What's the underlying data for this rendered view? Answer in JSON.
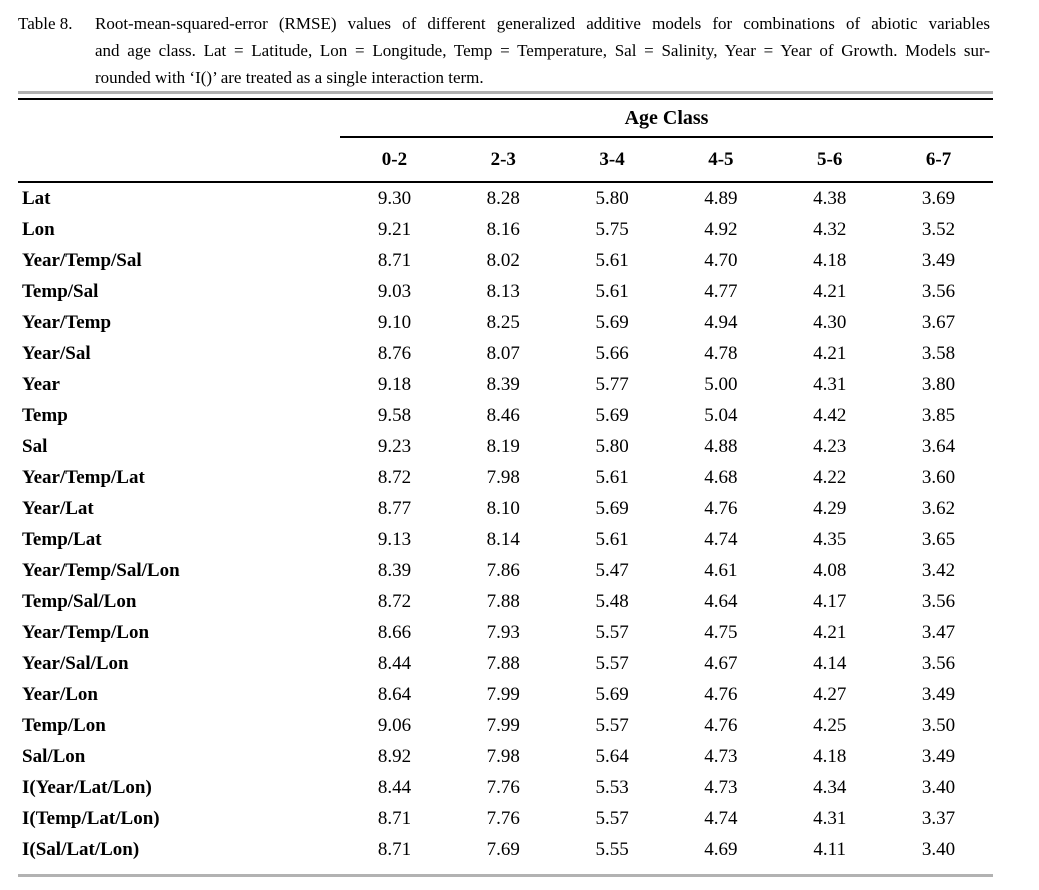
{
  "page": {
    "background": "#ffffff",
    "text_color": "#000000",
    "rule_black": "#000000",
    "rule_gray": "#b2b2b2"
  },
  "caption": {
    "label": "Table 8.",
    "lines": [
      "Root-mean-squared-error (RMSE) values of different generalized additive models for combinations of abiotic variables",
      "and age class. Lat = Latitude, Lon = Longitude, Temp = Temperature, Sal = Salinity, Year = Year of Growth. Models sur-",
      "rounded with ‘I()’ are treated as a single interaction term."
    ]
  },
  "table": {
    "span_header": "Age Class",
    "columns": [
      "0-2",
      "2-3",
      "3-4",
      "4-5",
      "5-6",
      "6-7"
    ],
    "rows": [
      {
        "label": "Lat",
        "values": [
          "9.30",
          "8.28",
          "5.80",
          "4.89",
          "4.38",
          "3.69"
        ]
      },
      {
        "label": "Lon",
        "values": [
          "9.21",
          "8.16",
          "5.75",
          "4.92",
          "4.32",
          "3.52"
        ]
      },
      {
        "label": "Year/Temp/Sal",
        "values": [
          "8.71",
          "8.02",
          "5.61",
          "4.70",
          "4.18",
          "3.49"
        ]
      },
      {
        "label": "Temp/Sal",
        "values": [
          "9.03",
          "8.13",
          "5.61",
          "4.77",
          "4.21",
          "3.56"
        ]
      },
      {
        "label": "Year/Temp",
        "values": [
          "9.10",
          "8.25",
          "5.69",
          "4.94",
          "4.30",
          "3.67"
        ]
      },
      {
        "label": "Year/Sal",
        "values": [
          "8.76",
          "8.07",
          "5.66",
          "4.78",
          "4.21",
          "3.58"
        ]
      },
      {
        "label": "Year",
        "values": [
          "9.18",
          "8.39",
          "5.77",
          "5.00",
          "4.31",
          "3.80"
        ]
      },
      {
        "label": "Temp",
        "values": [
          "9.58",
          "8.46",
          "5.69",
          "5.04",
          "4.42",
          "3.85"
        ]
      },
      {
        "label": "Sal",
        "values": [
          "9.23",
          "8.19",
          "5.80",
          "4.88",
          "4.23",
          "3.64"
        ]
      },
      {
        "label": "Year/Temp/Lat",
        "values": [
          "8.72",
          "7.98",
          "5.61",
          "4.68",
          "4.22",
          "3.60"
        ]
      },
      {
        "label": "Year/Lat",
        "values": [
          "8.77",
          "8.10",
          "5.69",
          "4.76",
          "4.29",
          "3.62"
        ]
      },
      {
        "label": "Temp/Lat",
        "values": [
          "9.13",
          "8.14",
          "5.61",
          "4.74",
          "4.35",
          "3.65"
        ]
      },
      {
        "label": "Year/Temp/Sal/Lon",
        "values": [
          "8.39",
          "7.86",
          "5.47",
          "4.61",
          "4.08",
          "3.42"
        ]
      },
      {
        "label": "Temp/Sal/Lon",
        "values": [
          "8.72",
          "7.88",
          "5.48",
          "4.64",
          "4.17",
          "3.56"
        ]
      },
      {
        "label": "Year/Temp/Lon",
        "values": [
          "8.66",
          "7.93",
          "5.57",
          "4.75",
          "4.21",
          "3.47"
        ]
      },
      {
        "label": "Year/Sal/Lon",
        "values": [
          "8.44",
          "7.88",
          "5.57",
          "4.67",
          "4.14",
          "3.56"
        ]
      },
      {
        "label": "Year/Lon",
        "values": [
          "8.64",
          "7.99",
          "5.69",
          "4.76",
          "4.27",
          "3.49"
        ]
      },
      {
        "label": "Temp/Lon",
        "values": [
          "9.06",
          "7.99",
          "5.57",
          "4.76",
          "4.25",
          "3.50"
        ]
      },
      {
        "label": "Sal/Lon",
        "values": [
          "8.92",
          "7.98",
          "5.64",
          "4.73",
          "4.18",
          "3.49"
        ]
      },
      {
        "label": "I(Year/Lat/Lon)",
        "values": [
          "8.44",
          "7.76",
          "5.53",
          "4.73",
          "4.34",
          "3.40"
        ]
      },
      {
        "label": "I(Temp/Lat/Lon)",
        "values": [
          "8.71",
          "7.76",
          "5.57",
          "4.74",
          "4.31",
          "3.37"
        ]
      },
      {
        "label": "I(Sal/Lat/Lon)",
        "values": [
          "8.71",
          "7.69",
          "5.55",
          "4.69",
          "4.11",
          "3.40"
        ]
      }
    ]
  }
}
